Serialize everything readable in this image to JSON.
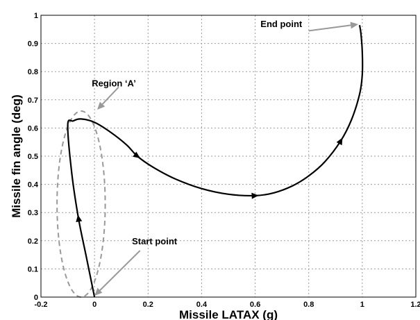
{
  "chart_data": {
    "type": "line",
    "title": "",
    "xlabel": "Missile LATAX (g)",
    "ylabel": "Missile fin angle (deg)",
    "xlim": [
      -0.2,
      1.2
    ],
    "ylim": [
      0,
      1
    ],
    "x_ticks": [
      "-0.2",
      "0",
      "0.2",
      "0.4",
      "0.6",
      "0.8",
      "1",
      "1.2"
    ],
    "y_ticks": [
      "0",
      "0.1",
      "0.2",
      "0.3",
      "0.4",
      "0.5",
      "0.6",
      "0.7",
      "0.8",
      "0.9",
      "1"
    ],
    "grid": true,
    "line_color": "#000000",
    "annotation_color": "#999999",
    "series": [
      {
        "points": [
          [
            0.0,
            0.0
          ],
          [
            -0.03,
            0.14
          ],
          [
            -0.06,
            0.28
          ],
          [
            -0.085,
            0.44
          ],
          [
            -0.1,
            0.61
          ],
          [
            -0.08,
            0.625
          ],
          [
            -0.05,
            0.632
          ],
          [
            0.0,
            0.62
          ],
          [
            0.06,
            0.585
          ],
          [
            0.12,
            0.54
          ],
          [
            0.16,
            0.5
          ],
          [
            0.22,
            0.46
          ],
          [
            0.3,
            0.42
          ],
          [
            0.4,
            0.385
          ],
          [
            0.5,
            0.365
          ],
          [
            0.6,
            0.36
          ],
          [
            0.67,
            0.37
          ],
          [
            0.74,
            0.395
          ],
          [
            0.8,
            0.43
          ],
          [
            0.86,
            0.48
          ],
          [
            0.92,
            0.555
          ],
          [
            0.96,
            0.63
          ],
          [
            0.99,
            0.72
          ],
          [
            1.0,
            0.79
          ],
          [
            1.0,
            0.87
          ],
          [
            0.995,
            0.935
          ],
          [
            0.99,
            0.965
          ]
        ],
        "arrows": [
          {
            "at": [
              -0.06,
              0.28
            ],
            "toward": [
              -0.07,
              0.34
            ]
          },
          {
            "at": [
              0.16,
              0.5
            ],
            "toward": [
              0.19,
              0.48
            ]
          },
          {
            "at": [
              0.6,
              0.36
            ],
            "toward": [
              0.64,
              0.362
            ]
          },
          {
            "at": [
              0.92,
              0.555
            ],
            "toward": [
              0.94,
              0.59
            ]
          }
        ]
      }
    ],
    "annotations": [
      {
        "text": "End point",
        "text_at": [
          0.62,
          0.97
        ],
        "arrow_from": [
          0.8,
          0.945
        ],
        "arrow_to": [
          0.985,
          0.968
        ]
      },
      {
        "text": "Region ‘A’",
        "text_at": [
          -0.01,
          0.76
        ],
        "arrow_from": [
          0.09,
          0.745
        ],
        "arrow_to": [
          0.01,
          0.665
        ]
      },
      {
        "text": "Start point",
        "text_at": [
          0.14,
          0.2
        ],
        "arrow_from": [
          0.17,
          0.165
        ],
        "arrow_to": [
          0.0,
          0.005
        ]
      }
    ],
    "region_ellipse": {
      "center": [
        -0.05,
        0.33
      ],
      "rx": 0.09,
      "ry": 0.33
    }
  }
}
